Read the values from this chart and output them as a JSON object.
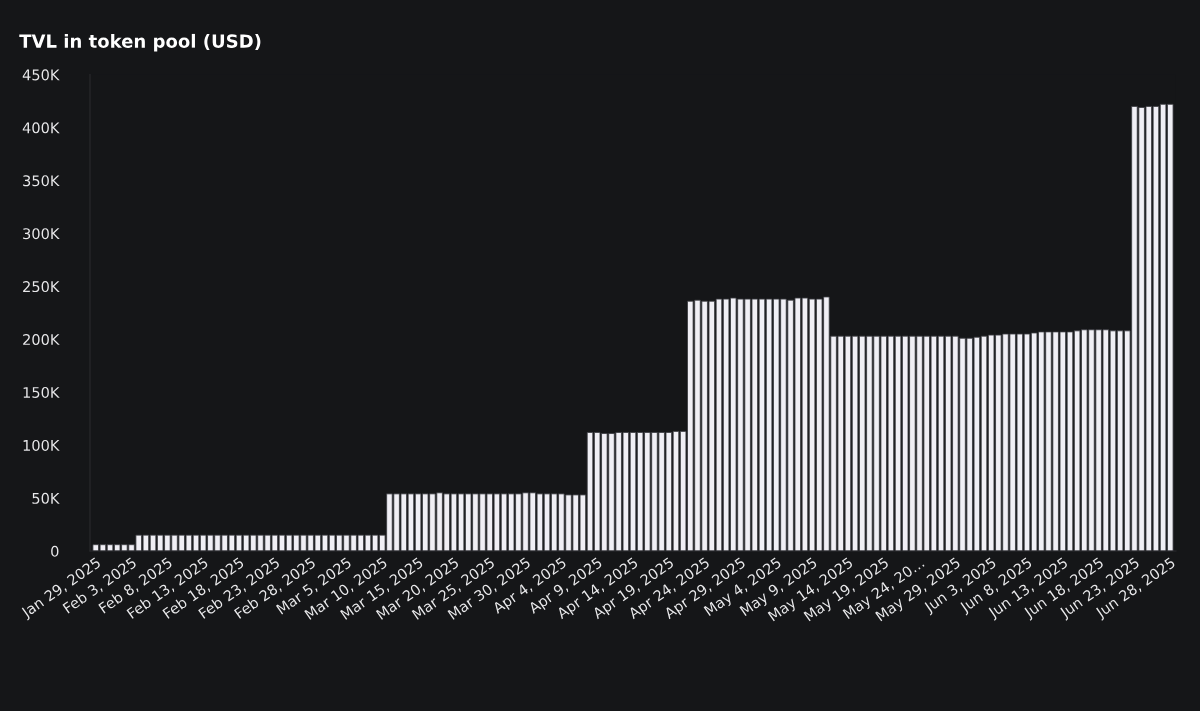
{
  "chart_data": {
    "type": "bar",
    "title": "TVL in token pool (USD)",
    "categories": [
      "Jan 29, 2025",
      null,
      null,
      null,
      null,
      "Feb 3, 2025",
      null,
      null,
      null,
      null,
      "Feb 8, 2025",
      null,
      null,
      null,
      null,
      "Feb 13, 2025",
      null,
      null,
      null,
      null,
      "Feb 18, 2025",
      null,
      null,
      null,
      null,
      "Feb 23, 2025",
      null,
      null,
      null,
      null,
      "Feb 28, 2025",
      null,
      null,
      null,
      null,
      "Mar 5, 2025",
      null,
      null,
      null,
      null,
      "Mar 10, 2025",
      null,
      null,
      null,
      null,
      "Mar 15, 2025",
      null,
      null,
      null,
      null,
      "Mar 20, 2025",
      null,
      null,
      null,
      null,
      "Mar 25, 2025",
      null,
      null,
      null,
      null,
      "Mar 30, 2025",
      null,
      null,
      null,
      null,
      "Apr 4, 2025",
      null,
      null,
      null,
      null,
      "Apr 9, 2025",
      null,
      null,
      null,
      null,
      "Apr 14, 2025",
      null,
      null,
      null,
      null,
      "Apr 19, 2025",
      null,
      null,
      null,
      null,
      "Apr 24, 2025",
      null,
      null,
      null,
      null,
      "Apr 29, 2025",
      null,
      null,
      null,
      null,
      "May 4, 2025",
      null,
      null,
      null,
      null,
      "May 9, 2025",
      null,
      null,
      null,
      null,
      "May 14, 2025",
      null,
      null,
      null,
      null,
      "May 19, 2025",
      null,
      null,
      null,
      null,
      "May 24, 20…",
      null,
      null,
      null,
      null,
      "May 29, 2025",
      null,
      null,
      null,
      null,
      "Jun 3, 2025",
      null,
      null,
      null,
      null,
      "Jun 8, 2025",
      null,
      null,
      null,
      null,
      "Jun 13, 2025",
      null,
      null,
      null,
      null,
      "Jun 18, 2025",
      null,
      null,
      null,
      null,
      "Jun 23, 2025",
      null,
      null,
      null,
      null,
      "Jun 28, 2025"
    ],
    "values": [
      6000,
      6000,
      6000,
      6000,
      6000,
      6000,
      15000,
      15000,
      15000,
      15000,
      15000,
      15000,
      15000,
      15000,
      15000,
      15000,
      15000,
      15000,
      15000,
      15000,
      15000,
      15000,
      15000,
      15000,
      15000,
      15000,
      15000,
      15000,
      15000,
      15000,
      15000,
      15000,
      15000,
      15000,
      15000,
      15000,
      15000,
      15000,
      15000,
      15000,
      15000,
      54000,
      54000,
      54000,
      54000,
      54000,
      54000,
      54000,
      55000,
      54000,
      54000,
      54000,
      54000,
      54000,
      54000,
      54000,
      54000,
      54000,
      54000,
      54000,
      55000,
      55000,
      54000,
      54000,
      54000,
      54000,
      53000,
      53000,
      53000,
      112000,
      112000,
      111000,
      111000,
      112000,
      112000,
      112000,
      112000,
      112000,
      112000,
      112000,
      112000,
      113000,
      113000,
      236000,
      237000,
      236000,
      236000,
      238000,
      238000,
      239000,
      238000,
      238000,
      238000,
      238000,
      238000,
      238000,
      238000,
      237000,
      239000,
      239000,
      238000,
      238000,
      240000,
      203000,
      203000,
      203000,
      203000,
      203000,
      203000,
      203000,
      203000,
      203000,
      203000,
      203000,
      203000,
      203000,
      203000,
      203000,
      203000,
      203000,
      203000,
      201000,
      201000,
      202000,
      203000,
      204000,
      204000,
      205000,
      205000,
      205000,
      205000,
      206000,
      207000,
      207000,
      207000,
      207000,
      207000,
      208000,
      209000,
      209000,
      209000,
      209000,
      208000,
      208000,
      208000,
      420000,
      419000,
      420000,
      420000,
      422000,
      422000
    ],
    "color": "#f0eff5",
    "ylim": [
      0,
      450000
    ],
    "yticks": [
      {
        "value": 0,
        "label": "0"
      },
      {
        "value": 50000,
        "label": "50K"
      },
      {
        "value": 100000,
        "label": "100K"
      },
      {
        "value": 150000,
        "label": "150K"
      },
      {
        "value": 200000,
        "label": "200K"
      },
      {
        "value": 250000,
        "label": "250K"
      },
      {
        "value": 300000,
        "label": "300K"
      },
      {
        "value": 350000,
        "label": "350K"
      },
      {
        "value": 400000,
        "label": "400K"
      },
      {
        "value": 450000,
        "label": "450K"
      }
    ],
    "grid": false
  }
}
